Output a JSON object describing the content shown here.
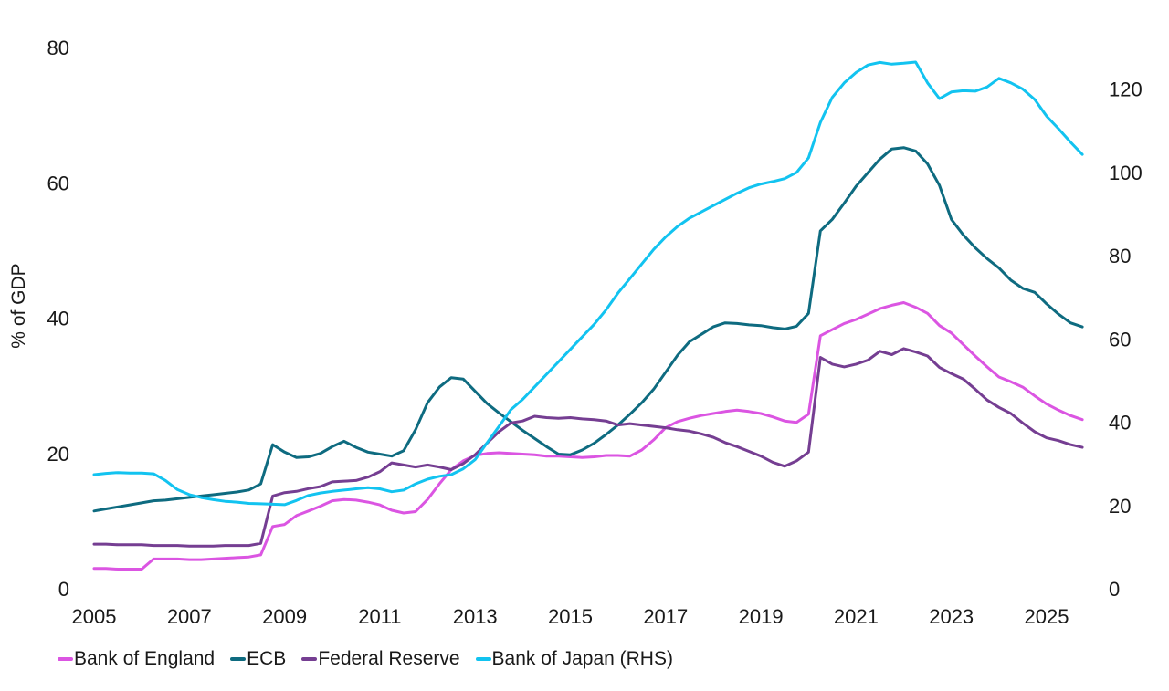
{
  "chart_data": {
    "type": "line",
    "ylabel": "% of GDP",
    "grid": false,
    "legend_position": "bottom-left",
    "axes": {
      "left": {
        "label": "% of GDP",
        "range": [
          0,
          80
        ],
        "ticks": [
          0,
          20,
          40,
          60,
          80
        ]
      },
      "right": {
        "label": "RHS",
        "range": [
          0,
          130
        ],
        "ticks": [
          0,
          20,
          40,
          60,
          80,
          100,
          120
        ]
      },
      "x": {
        "range": [
          2005,
          2026
        ],
        "tick_years": [
          2005,
          2007,
          2009,
          2011,
          2013,
          2015,
          2017,
          2019,
          2021,
          2023,
          2025
        ]
      }
    },
    "x": [
      2005.0,
      2005.25,
      2005.5,
      2005.75,
      2006.0,
      2006.25,
      2006.5,
      2006.75,
      2007.0,
      2007.25,
      2007.5,
      2007.75,
      2008.0,
      2008.25,
      2008.5,
      2008.75,
      2009.0,
      2009.25,
      2009.5,
      2009.75,
      2010.0,
      2010.25,
      2010.5,
      2010.75,
      2011.0,
      2011.25,
      2011.5,
      2011.75,
      2012.0,
      2012.25,
      2012.5,
      2012.75,
      2013.0,
      2013.25,
      2013.5,
      2013.75,
      2014.0,
      2014.25,
      2014.5,
      2014.75,
      2015.0,
      2015.25,
      2015.5,
      2015.75,
      2016.0,
      2016.25,
      2016.5,
      2016.75,
      2017.0,
      2017.25,
      2017.5,
      2017.75,
      2018.0,
      2018.25,
      2018.5,
      2018.75,
      2019.0,
      2019.25,
      2019.5,
      2019.75,
      2020.0,
      2020.25,
      2020.5,
      2020.75,
      2021.0,
      2021.25,
      2021.5,
      2021.75,
      2022.0,
      2022.25,
      2022.5,
      2022.75,
      2023.0,
      2023.25,
      2023.5,
      2023.75,
      2024.0,
      2024.25,
      2024.5,
      2024.75,
      2025.0,
      2025.25,
      2025.5,
      2025.75
    ],
    "series": [
      {
        "id": "bank-of-england",
        "name": "Bank of England",
        "axis": "left",
        "color": "#DB55E2",
        "values": [
          3.0,
          3.0,
          2.9,
          2.9,
          2.9,
          4.4,
          4.4,
          4.4,
          4.3,
          4.3,
          4.4,
          4.5,
          4.6,
          4.7,
          5.0,
          9.2,
          9.5,
          10.8,
          11.5,
          12.2,
          13.0,
          13.2,
          13.1,
          12.8,
          12.4,
          11.6,
          11.2,
          11.4,
          13.2,
          15.5,
          17.6,
          18.9,
          19.7,
          20.0,
          20.1,
          20.0,
          19.9,
          19.8,
          19.6,
          19.6,
          19.5,
          19.4,
          19.5,
          19.7,
          19.7,
          19.6,
          20.5,
          22.0,
          23.8,
          24.7,
          25.2,
          25.6,
          25.9,
          26.2,
          26.4,
          26.2,
          25.9,
          25.4,
          24.8,
          24.6,
          25.8,
          37.4,
          38.3,
          39.2,
          39.8,
          40.6,
          41.4,
          41.9,
          42.3,
          41.6,
          40.7,
          38.9,
          37.8,
          36.1,
          34.4,
          32.8,
          31.3,
          30.6,
          29.8,
          28.5,
          27.3,
          26.4,
          25.6,
          25.0
        ]
      },
      {
        "id": "ecb",
        "name": "ECB",
        "axis": "left",
        "color": "#0E6B80",
        "values": [
          11.5,
          11.8,
          12.1,
          12.4,
          12.7,
          13.0,
          13.1,
          13.3,
          13.5,
          13.7,
          13.9,
          14.1,
          14.3,
          14.6,
          15.5,
          21.3,
          20.2,
          19.4,
          19.5,
          20.0,
          21.0,
          21.8,
          20.9,
          20.2,
          19.9,
          19.6,
          20.4,
          23.5,
          27.5,
          29.8,
          31.2,
          31.0,
          29.2,
          27.4,
          26.0,
          24.7,
          23.4,
          22.2,
          21.0,
          19.9,
          19.8,
          20.5,
          21.5,
          22.8,
          24.2,
          25.8,
          27.5,
          29.5,
          32.0,
          34.5,
          36.5,
          37.6,
          38.7,
          39.3,
          39.2,
          39.0,
          38.9,
          38.6,
          38.4,
          38.8,
          40.7,
          52.9,
          54.6,
          57.0,
          59.5,
          61.5,
          63.5,
          65.0,
          65.2,
          64.7,
          62.8,
          59.6,
          54.6,
          52.3,
          50.4,
          48.8,
          47.4,
          45.6,
          44.4,
          43.8,
          42.1,
          40.6,
          39.3,
          38.7
        ]
      },
      {
        "id": "federal-reserve",
        "name": "Federal Reserve",
        "axis": "left",
        "color": "#753E92",
        "values": [
          6.6,
          6.6,
          6.5,
          6.5,
          6.5,
          6.4,
          6.4,
          6.4,
          6.3,
          6.3,
          6.3,
          6.4,
          6.4,
          6.4,
          6.7,
          13.7,
          14.2,
          14.4,
          14.8,
          15.1,
          15.8,
          15.9,
          16.0,
          16.5,
          17.3,
          18.6,
          18.3,
          18.0,
          18.3,
          18.0,
          17.6,
          18.5,
          19.8,
          21.5,
          23.2,
          24.5,
          24.8,
          25.5,
          25.3,
          25.2,
          25.3,
          25.1,
          25.0,
          24.8,
          24.2,
          24.4,
          24.2,
          24.0,
          23.8,
          23.5,
          23.3,
          22.9,
          22.4,
          21.6,
          21.0,
          20.3,
          19.6,
          18.7,
          18.1,
          18.9,
          20.2,
          34.2,
          33.2,
          32.8,
          33.2,
          33.8,
          35.1,
          34.6,
          35.5,
          35.0,
          34.4,
          32.7,
          31.8,
          31.0,
          29.5,
          27.9,
          26.8,
          25.9,
          24.5,
          23.2,
          22.3,
          21.9,
          21.3,
          20.9
        ]
      },
      {
        "id": "bank-of-japan",
        "name": "Bank of Japan (RHS)",
        "axis": "right",
        "color": "#12C3F0",
        "values": [
          27.4,
          27.7,
          27.9,
          27.8,
          27.8,
          27.6,
          26.0,
          23.8,
          22.6,
          21.9,
          21.4,
          21.0,
          20.8,
          20.5,
          20.4,
          20.3,
          20.2,
          21.2,
          22.4,
          23.0,
          23.4,
          23.7,
          24.0,
          24.3,
          24.0,
          23.3,
          23.7,
          25.2,
          26.3,
          27.0,
          27.4,
          28.8,
          31.0,
          35.0,
          39.0,
          43.0,
          45.5,
          48.5,
          51.5,
          54.5,
          57.5,
          60.5,
          63.5,
          67.0,
          71.0,
          74.5,
          78.0,
          81.5,
          84.5,
          87.0,
          89.0,
          90.5,
          92.0,
          93.5,
          95.0,
          96.3,
          97.2,
          97.8,
          98.5,
          100.0,
          103.5,
          112.0,
          118.0,
          121.5,
          124.0,
          125.8,
          126.4,
          126.0,
          126.2,
          126.5,
          121.5,
          117.7,
          119.3,
          119.6,
          119.5,
          120.5,
          122.6,
          121.5,
          120.0,
          117.5,
          113.5,
          110.5,
          107.3,
          104.3
        ]
      }
    ]
  }
}
